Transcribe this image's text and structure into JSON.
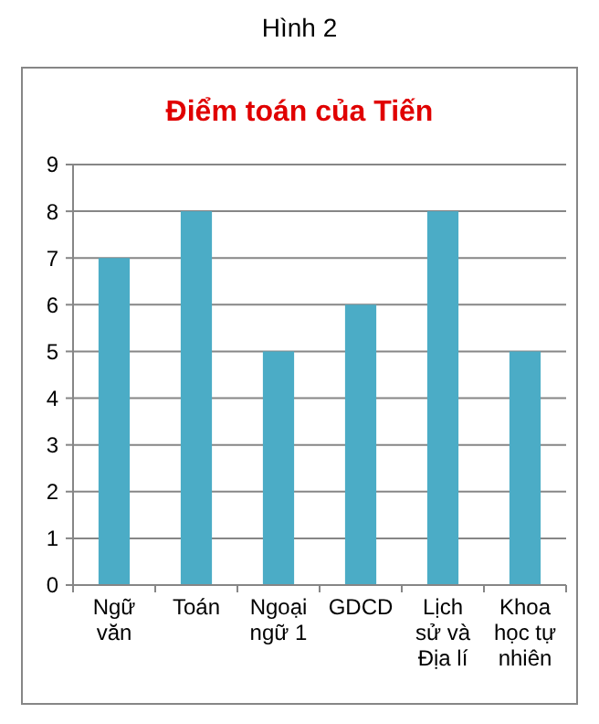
{
  "chart_data": {
    "type": "bar",
    "title": "Điểm toán của Tiến",
    "annotations": [
      "Hình 2"
    ],
    "categories": [
      "Ngữ văn",
      "Toán",
      "Ngoại ngữ 1",
      "GDCD",
      "Lịch sử và Địa lí",
      "Khoa học tự nhiên"
    ],
    "values": [
      7,
      8,
      5,
      6,
      8,
      5
    ],
    "color": "#4bacc6",
    "ylim": [
      0,
      9
    ],
    "yticks": [
      0,
      1,
      2,
      3,
      4,
      5,
      6,
      7,
      8,
      9
    ],
    "grid": "y"
  }
}
